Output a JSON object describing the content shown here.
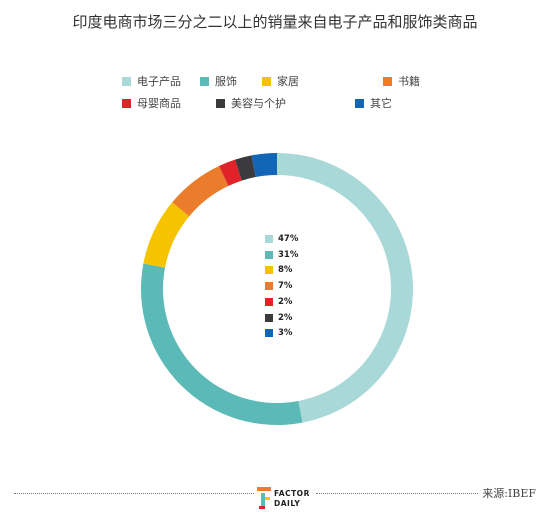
{
  "chart_data": {
    "type": "pie",
    "title": "印度电商市场三分之二以上的销量来自电子产品和服饰类商品",
    "categories": [
      "电子产品",
      "服饰",
      "家居",
      "书籍",
      "母婴商品",
      "美容与个护",
      "其它"
    ],
    "values": [
      47,
      31,
      8,
      7,
      2,
      2,
      3
    ],
    "value_labels": [
      "47%",
      "31%",
      "8%",
      "7%",
      "2%",
      "2%",
      "3%"
    ],
    "colors": [
      "#a9d8d8",
      "#5bbab8",
      "#f6c300",
      "#eb7c2c",
      "#e02229",
      "#3b3b3d",
      "#1366b5"
    ],
    "legend_placement": "top",
    "donut": true
  },
  "footer": {
    "logo_line1": "FACTOR",
    "logo_line2": "DAILY",
    "source": "来源:IBEF"
  }
}
